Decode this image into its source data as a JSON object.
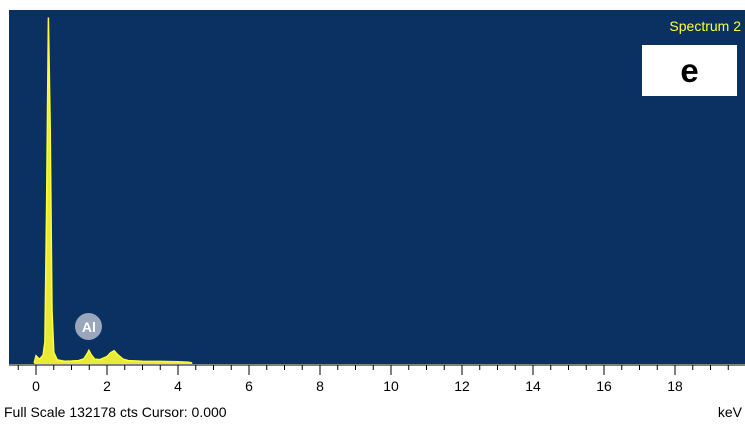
{
  "chart_data": {
    "type": "line",
    "title": "",
    "xlabel": "keV",
    "ylabel": "",
    "xlim": [
      -0.7,
      19.7
    ],
    "ylim": [
      0,
      132178
    ],
    "x_ticks": [
      0,
      2,
      4,
      6,
      8,
      10,
      12,
      14,
      16,
      18
    ],
    "grid": false,
    "series": [
      {
        "name": "Spectrum 2",
        "color": "#ffff33",
        "x": [
          -0.05,
          0.0,
          0.1,
          0.2,
          0.25,
          0.3,
          0.35,
          0.4,
          0.45,
          0.5,
          0.6,
          0.8,
          1.0,
          1.2,
          1.35,
          1.45,
          1.49,
          1.55,
          1.65,
          1.8,
          2.0,
          2.1,
          2.2,
          2.3,
          2.45,
          2.6,
          3.0,
          3.5,
          4.0,
          4.3,
          4.4
        ],
        "y": [
          0,
          2800,
          1400,
          3000,
          8000,
          60000,
          132000,
          90000,
          20000,
          4000,
          1200,
          700,
          750,
          900,
          1600,
          3800,
          4800,
          3300,
          1500,
          1300,
          2500,
          3900,
          4700,
          3200,
          1500,
          900,
          700,
          600,
          500,
          250,
          0
        ]
      }
    ]
  },
  "legend": {
    "spectrum_name": "Spectrum 2"
  },
  "panel_label": "e",
  "peak_marker": {
    "element": "Al",
    "energy_kev": 1.49
  },
  "status": {
    "text": "Full Scale 132178 cts Cursor: 0.000"
  },
  "axis": {
    "unit": "keV"
  },
  "colors": {
    "plot_background": "#0b3163",
    "trace": "#ffff33",
    "marker": "#9aa6bb"
  }
}
